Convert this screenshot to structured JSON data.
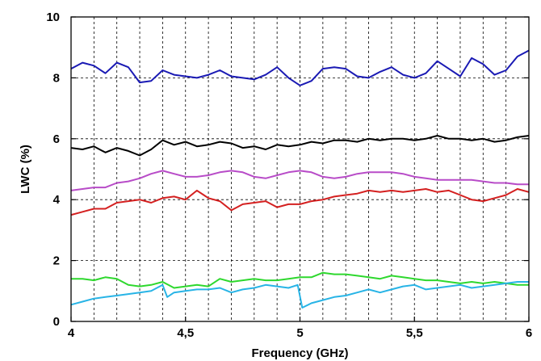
{
  "chart_data": {
    "type": "line",
    "title": "",
    "xlabel": "Frequency (GHz)",
    "ylabel": "LWC (%)",
    "xlim": [
      4,
      6
    ],
    "ylim": [
      0,
      10
    ],
    "x_ticks": [
      4,
      4.5,
      5,
      5.5,
      6
    ],
    "x_tick_labels": [
      "4",
      "4,5",
      "5",
      "5,5",
      "6"
    ],
    "y_ticks": [
      0,
      2,
      4,
      6,
      8,
      10
    ],
    "y_tick_labels": [
      "0",
      "2",
      "4",
      "6",
      "8",
      "10"
    ],
    "x_minor_step": 0.1,
    "grid": true,
    "legend": "none",
    "series": [
      {
        "color": "#1a1ab4",
        "x": [
          4.0,
          4.05,
          4.1,
          4.15,
          4.2,
          4.25,
          4.3,
          4.35,
          4.4,
          4.45,
          4.5,
          4.55,
          4.6,
          4.65,
          4.7,
          4.75,
          4.8,
          4.85,
          4.9,
          4.95,
          5.0,
          5.05,
          5.1,
          5.15,
          5.2,
          5.25,
          5.3,
          5.35,
          5.4,
          5.45,
          5.5,
          5.55,
          5.6,
          5.65,
          5.7,
          5.75,
          5.8,
          5.85,
          5.9,
          5.95,
          6.0
        ],
        "y": [
          8.3,
          8.5,
          8.4,
          8.15,
          8.5,
          8.35,
          7.85,
          7.9,
          8.25,
          8.1,
          8.05,
          8.0,
          8.1,
          8.25,
          8.05,
          8.0,
          7.95,
          8.1,
          8.35,
          8.0,
          7.75,
          7.9,
          8.3,
          8.35,
          8.3,
          8.05,
          8.0,
          8.2,
          8.35,
          8.1,
          8.0,
          8.15,
          8.55,
          8.3,
          8.05,
          8.65,
          8.45,
          8.1,
          8.25,
          8.7,
          8.9
        ]
      },
      {
        "color": "#000000",
        "x": [
          4.0,
          4.05,
          4.1,
          4.15,
          4.2,
          4.25,
          4.3,
          4.35,
          4.4,
          4.45,
          4.5,
          4.55,
          4.6,
          4.65,
          4.7,
          4.75,
          4.8,
          4.85,
          4.9,
          4.95,
          5.0,
          5.05,
          5.1,
          5.15,
          5.2,
          5.25,
          5.3,
          5.35,
          5.4,
          5.45,
          5.5,
          5.55,
          5.6,
          5.65,
          5.7,
          5.75,
          5.8,
          5.85,
          5.9,
          5.95,
          6.0
        ],
        "y": [
          5.7,
          5.65,
          5.75,
          5.55,
          5.7,
          5.6,
          5.45,
          5.65,
          5.95,
          5.8,
          5.9,
          5.75,
          5.8,
          5.9,
          5.85,
          5.7,
          5.75,
          5.65,
          5.8,
          5.75,
          5.8,
          5.9,
          5.85,
          5.95,
          5.95,
          5.9,
          6.0,
          5.95,
          6.0,
          6.0,
          5.95,
          6.0,
          6.1,
          6.0,
          6.0,
          5.95,
          6.0,
          5.9,
          5.95,
          6.05,
          6.1
        ]
      },
      {
        "color": "#b84cc8",
        "x": [
          4.0,
          4.05,
          4.1,
          4.15,
          4.2,
          4.25,
          4.3,
          4.35,
          4.4,
          4.45,
          4.5,
          4.55,
          4.6,
          4.65,
          4.7,
          4.75,
          4.8,
          4.85,
          4.9,
          4.95,
          5.0,
          5.05,
          5.1,
          5.15,
          5.2,
          5.25,
          5.3,
          5.35,
          5.4,
          5.45,
          5.5,
          5.55,
          5.6,
          5.65,
          5.7,
          5.75,
          5.8,
          5.85,
          5.9,
          5.95,
          6.0
        ],
        "y": [
          4.3,
          4.35,
          4.4,
          4.4,
          4.55,
          4.6,
          4.7,
          4.85,
          4.95,
          4.85,
          4.75,
          4.75,
          4.8,
          4.9,
          4.95,
          4.9,
          4.75,
          4.7,
          4.8,
          4.9,
          4.95,
          4.9,
          4.75,
          4.7,
          4.75,
          4.85,
          4.9,
          4.9,
          4.9,
          4.85,
          4.75,
          4.7,
          4.65,
          4.65,
          4.65,
          4.65,
          4.6,
          4.55,
          4.55,
          4.5,
          4.5
        ]
      },
      {
        "color": "#d42020",
        "x": [
          4.0,
          4.05,
          4.1,
          4.15,
          4.2,
          4.25,
          4.3,
          4.35,
          4.4,
          4.45,
          4.5,
          4.55,
          4.6,
          4.65,
          4.7,
          4.75,
          4.8,
          4.85,
          4.9,
          4.95,
          5.0,
          5.05,
          5.1,
          5.15,
          5.2,
          5.25,
          5.3,
          5.35,
          5.4,
          5.45,
          5.5,
          5.55,
          5.6,
          5.65,
          5.7,
          5.75,
          5.8,
          5.85,
          5.9,
          5.95,
          6.0
        ],
        "y": [
          3.5,
          3.6,
          3.7,
          3.7,
          3.9,
          3.95,
          4.0,
          3.9,
          4.05,
          4.1,
          4.0,
          4.3,
          4.05,
          3.95,
          3.65,
          3.85,
          3.9,
          3.95,
          3.75,
          3.85,
          3.85,
          3.95,
          4.0,
          4.1,
          4.15,
          4.2,
          4.3,
          4.25,
          4.3,
          4.25,
          4.3,
          4.35,
          4.25,
          4.3,
          4.15,
          4.0,
          3.95,
          4.05,
          4.15,
          4.35,
          4.25
        ]
      },
      {
        "color": "#2ed82e",
        "x": [
          4.0,
          4.05,
          4.1,
          4.15,
          4.2,
          4.25,
          4.3,
          4.35,
          4.4,
          4.45,
          4.5,
          4.55,
          4.6,
          4.65,
          4.7,
          4.75,
          4.8,
          4.85,
          4.9,
          4.95,
          5.0,
          5.05,
          5.1,
          5.15,
          5.2,
          5.25,
          5.3,
          5.35,
          5.4,
          5.45,
          5.5,
          5.55,
          5.6,
          5.65,
          5.7,
          5.75,
          5.8,
          5.85,
          5.9,
          5.95,
          6.0
        ],
        "y": [
          1.4,
          1.4,
          1.35,
          1.45,
          1.4,
          1.2,
          1.15,
          1.2,
          1.3,
          1.1,
          1.15,
          1.2,
          1.15,
          1.4,
          1.3,
          1.35,
          1.4,
          1.35,
          1.35,
          1.4,
          1.45,
          1.45,
          1.6,
          1.55,
          1.55,
          1.5,
          1.45,
          1.4,
          1.5,
          1.45,
          1.4,
          1.35,
          1.35,
          1.3,
          1.25,
          1.3,
          1.25,
          1.3,
          1.25,
          1.2,
          1.2
        ]
      },
      {
        "color": "#28b4e6",
        "x": [
          4.0,
          4.05,
          4.1,
          4.15,
          4.2,
          4.25,
          4.3,
          4.35,
          4.4,
          4.42,
          4.45,
          4.5,
          4.55,
          4.6,
          4.65,
          4.7,
          4.75,
          4.8,
          4.85,
          4.9,
          4.95,
          4.99,
          5.01,
          5.05,
          5.1,
          5.15,
          5.2,
          5.25,
          5.3,
          5.35,
          5.4,
          5.45,
          5.5,
          5.55,
          5.6,
          5.65,
          5.7,
          5.75,
          5.8,
          5.85,
          5.9,
          5.95,
          6.0
        ],
        "y": [
          0.55,
          0.65,
          0.75,
          0.8,
          0.85,
          0.9,
          0.95,
          1.0,
          1.2,
          0.8,
          0.95,
          1.0,
          1.05,
          1.05,
          1.1,
          0.95,
          1.05,
          1.1,
          1.2,
          1.15,
          1.1,
          1.2,
          0.45,
          0.6,
          0.7,
          0.8,
          0.85,
          0.95,
          1.05,
          0.95,
          1.05,
          1.15,
          1.2,
          1.05,
          1.1,
          1.15,
          1.2,
          1.1,
          1.15,
          1.2,
          1.25,
          1.3,
          1.3
        ]
      }
    ]
  }
}
